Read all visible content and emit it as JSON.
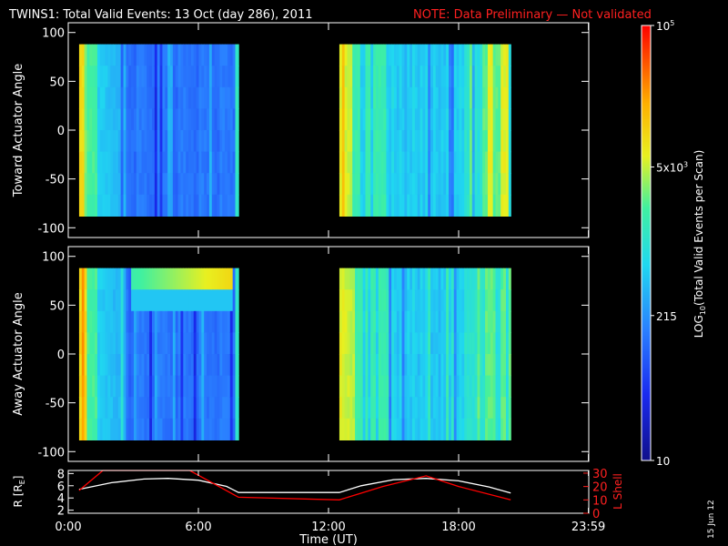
{
  "header": {
    "title": "TWINS1: Total Valid Events: 13 Oct (day 286), 2011",
    "note": "NOTE: Data Preliminary — Not validated"
  },
  "stamp": "15 Jun 12",
  "colors": {
    "background": "#000000",
    "text": "#ffffff",
    "note": "#ff2020",
    "lshell": "#ff0000",
    "radius": "#ffffff"
  },
  "chart_data": [
    {
      "type": "heatmap",
      "ylabel": "Toward Actuator Angle",
      "ylim": [
        -110,
        110
      ],
      "yticks": [
        "100",
        "50",
        "0",
        "-50",
        "-100"
      ],
      "ytick_values": [
        100,
        50,
        0,
        -50,
        -100
      ],
      "xlim": [
        0,
        24
      ],
      "data_ranges_hours": [
        [
          0.5,
          7.85
        ],
        [
          12.5,
          20.4
        ]
      ],
      "angle_range": [
        -88,
        88
      ],
      "colorscale": "log10",
      "zrange": [
        10,
        100000
      ]
    },
    {
      "type": "heatmap",
      "ylabel": "Away Actuator Angle",
      "ylim": [
        -110,
        110
      ],
      "yticks": [
        "100",
        "50",
        "0",
        "-50",
        "-100"
      ],
      "ytick_values": [
        100,
        50,
        0,
        -50,
        -100
      ],
      "xlim": [
        0,
        24
      ],
      "data_ranges_hours": [
        [
          0.5,
          7.85
        ],
        [
          12.5,
          20.4
        ]
      ],
      "angle_range": [
        -88,
        88
      ],
      "colorscale": "log10",
      "zrange": [
        10,
        100000
      ],
      "feature": "enhanced band near +70 deg between 2.8 h and 7.5 h"
    },
    {
      "type": "line",
      "ylabel": "R [R",
      "ylabel_sub": "E",
      "ylabel_right": "L Shell",
      "yticks": [
        "8",
        "6",
        "4",
        "2"
      ],
      "ytick_values": [
        8,
        6,
        4,
        2
      ],
      "ylim": [
        1.5,
        8.5
      ],
      "yticks_right": [
        "30",
        "20",
        "10",
        "0"
      ],
      "ytick_values_right": [
        30,
        20,
        10,
        0
      ],
      "ylim_right": [
        0,
        32
      ],
      "series": [
        {
          "color": "#ffffff",
          "x": [
            0.5,
            2,
            3.5,
            4.6,
            6,
            7.3,
            7.85,
            12.5,
            13.5,
            15,
            16.5,
            18,
            19.4,
            20.4
          ],
          "y": [
            5.4,
            6.5,
            7.1,
            7.2,
            6.9,
            5.9,
            4.9,
            4.9,
            6.0,
            7.0,
            7.2,
            6.8,
            5.8,
            4.8
          ]
        },
        {
          "color": "#ff0000",
          "x": [
            0.5,
            1.6,
            5.6,
            7.85,
            12.5,
            14.5,
            16.5,
            18,
            20.4
          ],
          "y": [
            17,
            32,
            32,
            12,
            10,
            20,
            28,
            20,
            10
          ]
        }
      ],
      "xticks": [
        "0:00",
        "6:00",
        "12:00",
        "18:00",
        "23:59"
      ],
      "xtick_values": [
        0,
        6,
        12,
        18,
        23.983
      ],
      "xlabel": "Time (UT)",
      "xlim": [
        0,
        24
      ]
    }
  ],
  "colorbar": {
    "label": "LOG",
    "label_sub": "10",
    "label_rest": "(Total Valid Events per Scan)",
    "ticks": [
      {
        "value": 100000,
        "base": "10",
        "exp": "5"
      },
      {
        "value": 5000,
        "base": "5x10",
        "exp": "3"
      },
      {
        "value": 215,
        "base": "215",
        "exp": ""
      },
      {
        "value": 10,
        "base": "10",
        "exp": ""
      }
    ],
    "zrange": [
      10,
      100000
    ]
  }
}
